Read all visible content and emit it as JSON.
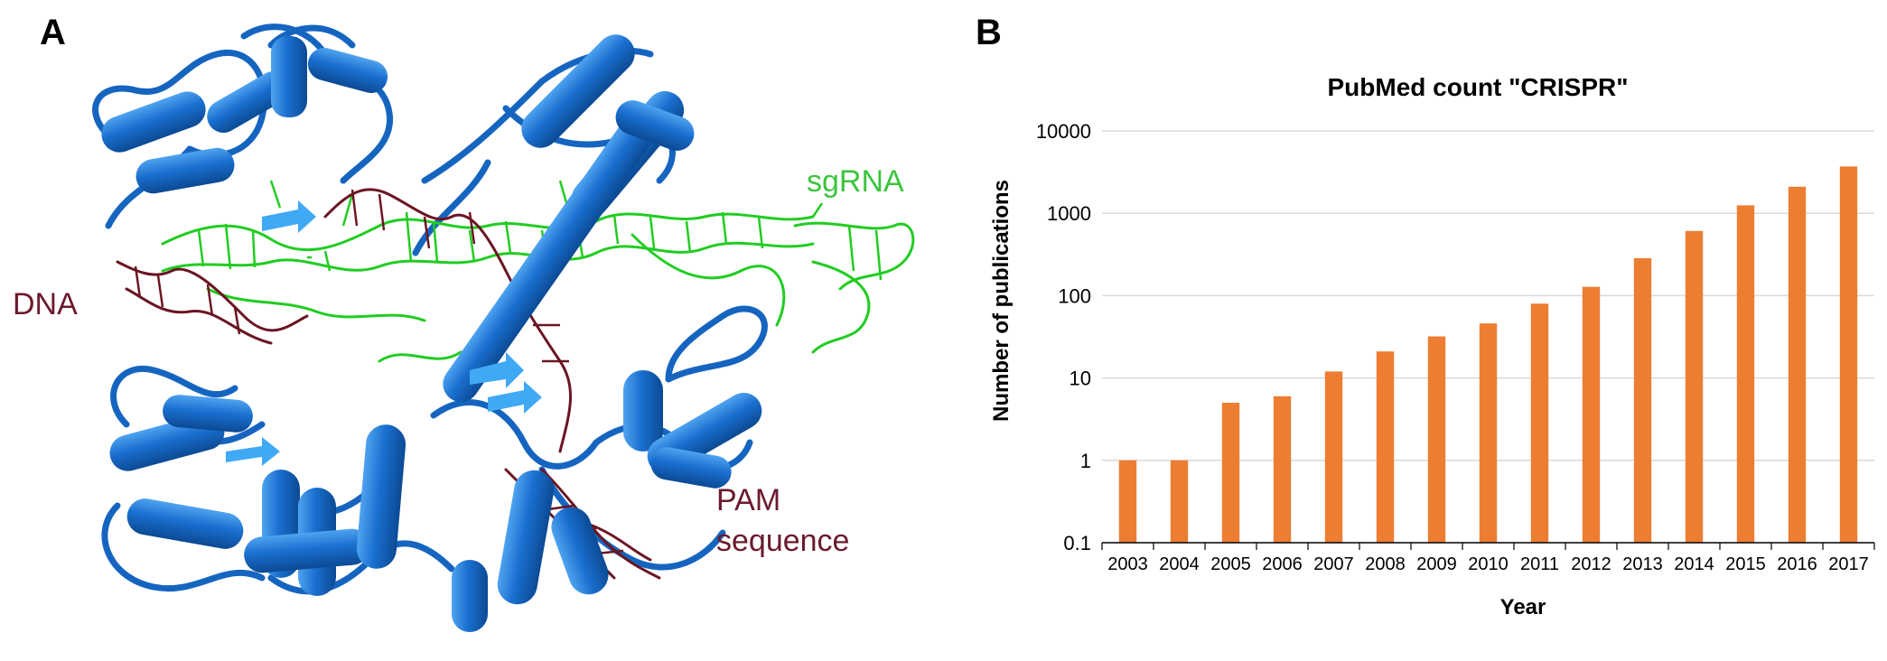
{
  "panel_a": {
    "letter": "A",
    "labels": {
      "sgrna": "sgRNA",
      "dna": "DNA",
      "pam_line1": "PAM",
      "pam_line2": "sequence"
    },
    "colors": {
      "protein": "#1a6fcf",
      "protein_dark": "#0d4f9c",
      "protein_light": "#3fa9f5",
      "sgrna": "#22cc22",
      "dna": "#6b1522",
      "label_green": "#3cc43c",
      "label_maroon": "#6b1a2e"
    }
  },
  "panel_b": {
    "letter": "B"
  },
  "chart_data": {
    "type": "bar",
    "title": "PubMed count \"CRISPR\"",
    "xlabel": "Year",
    "ylabel": "Number of publications",
    "yscale": "log",
    "ylim": [
      0.1,
      10000
    ],
    "yticks": [
      "0.1",
      "1",
      "10",
      "100",
      "1000",
      "10000"
    ],
    "grid": "horizontal",
    "bar_color": "#ed7d31",
    "categories": [
      "2003",
      "2004",
      "2005",
      "2006",
      "2007",
      "2008",
      "2009",
      "2010",
      "2011",
      "2012",
      "2013",
      "2014",
      "2015",
      "2016",
      "2017"
    ],
    "values": [
      1,
      1,
      5,
      6,
      12,
      21,
      32,
      46,
      80,
      128,
      285,
      610,
      1250,
      2100,
      3700
    ]
  }
}
